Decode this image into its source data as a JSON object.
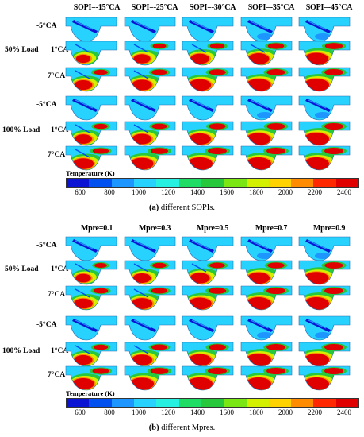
{
  "palette": [
    "#0a14d2",
    "#0050f0",
    "#1e96ff",
    "#28d2ff",
    "#28f0e0",
    "#1edc64",
    "#28c83c",
    "#7ae614",
    "#d2f000",
    "#ffd200",
    "#ff8c00",
    "#ff2800",
    "#e00000"
  ],
  "figure_a": {
    "columns": [
      "SOPI=-15°CA",
      "SOPI=-25°CA",
      "SOPI=-30°CA",
      "SOPI=-35°CA",
      "SOPI=-45°CA"
    ],
    "groups": [
      {
        "load": "50% Load",
        "times": [
          "-5°CA",
          "1°CA",
          "7°CA"
        ]
      },
      {
        "load": "100% Load",
        "times": [
          "-5°CA",
          "1°CA",
          "7°CA"
        ]
      }
    ],
    "legend_title": "Temperature (K)",
    "legend_ticks": [
      "600",
      "800",
      "1000",
      "1200",
      "1400",
      "1600",
      "1800",
      "2000",
      "2200",
      "2400"
    ],
    "caption_label": "(a)",
    "caption_text": " different SOPIs."
  },
  "figure_b": {
    "columns": [
      "Mpre=0.1",
      "Mpre=0.3",
      "Mpre=0.5",
      "Mpre=0.7",
      "Mpre=0.9"
    ],
    "groups": [
      {
        "load": "50% Load",
        "times": [
          "-5°CA",
          "1°CA",
          "7°CA"
        ]
      },
      {
        "load": "100% Load",
        "times": [
          "-5°CA",
          "1°CA",
          "7°CA"
        ]
      }
    ],
    "legend_title": "Temperature (K)",
    "legend_ticks": [
      "600",
      "800",
      "1000",
      "1200",
      "1400",
      "1600",
      "1800",
      "2000",
      "2200",
      "2400"
    ],
    "caption_label": "(b)",
    "caption_text": " different Mpres."
  }
}
